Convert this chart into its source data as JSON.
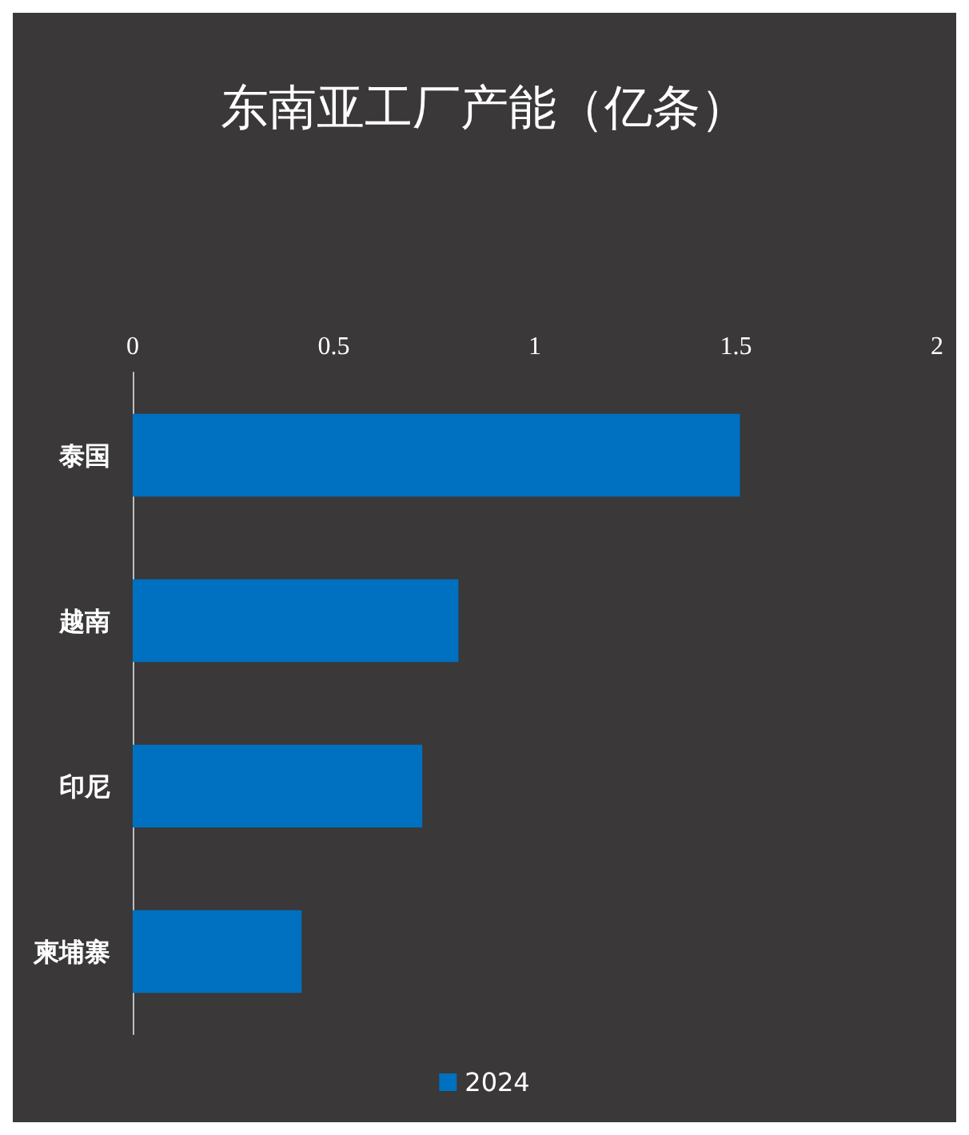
{
  "chart_data": {
    "type": "bar",
    "orientation": "horizontal",
    "title": "东南亚工厂产能（亿条）",
    "categories": [
      "泰国",
      "越南",
      "印尼",
      "柬埔寨"
    ],
    "series": [
      {
        "name": "2024",
        "color": "#0070c0",
        "values": [
          1.51,
          0.81,
          0.72,
          0.42
        ]
      }
    ],
    "xlim": [
      0,
      2
    ],
    "xticks": [
      0,
      0.5,
      1,
      1.5,
      2
    ],
    "grid": false,
    "legend": "bottom"
  }
}
